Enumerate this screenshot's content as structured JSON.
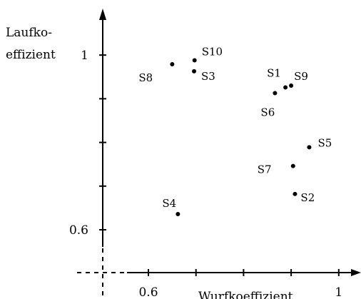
{
  "chart_data": {
    "type": "scatter",
    "xlabel": "Wurfkoeffizient",
    "ylabel_lines": [
      "Laufko-",
      "effizient"
    ],
    "xlim": [
      0.4,
      1.05
    ],
    "ylim": [
      0.5,
      1.1
    ],
    "x_ticks": [
      0.6,
      0.7,
      0.8,
      0.9,
      1.0
    ],
    "y_ticks": [
      0.6,
      0.7,
      0.8,
      0.9,
      1.0
    ],
    "x_tick_labels": [
      {
        "value": 0.6,
        "text": "0.6"
      },
      {
        "value": 1.0,
        "text": "1"
      }
    ],
    "y_tick_labels": [
      {
        "value": 0.6,
        "text": "0.6"
      },
      {
        "value": 1.0,
        "text": "1"
      }
    ],
    "points": [
      {
        "label": "S1",
        "x": 0.888,
        "y": 0.926
      },
      {
        "label": "S2",
        "x": 0.908,
        "y": 0.682
      },
      {
        "label": "S3",
        "x": 0.696,
        "y": 0.963
      },
      {
        "label": "S4",
        "x": 0.662,
        "y": 0.636
      },
      {
        "label": "S5",
        "x": 0.938,
        "y": 0.789
      },
      {
        "label": "S6",
        "x": 0.866,
        "y": 0.913
      },
      {
        "label": "S7",
        "x": 0.904,
        "y": 0.746
      },
      {
        "label": "S8",
        "x": 0.65,
        "y": 0.979
      },
      {
        "label": "S9",
        "x": 0.9,
        "y": 0.93
      },
      {
        "label": "S10",
        "x": 0.697,
        "y": 0.988
      }
    ]
  }
}
